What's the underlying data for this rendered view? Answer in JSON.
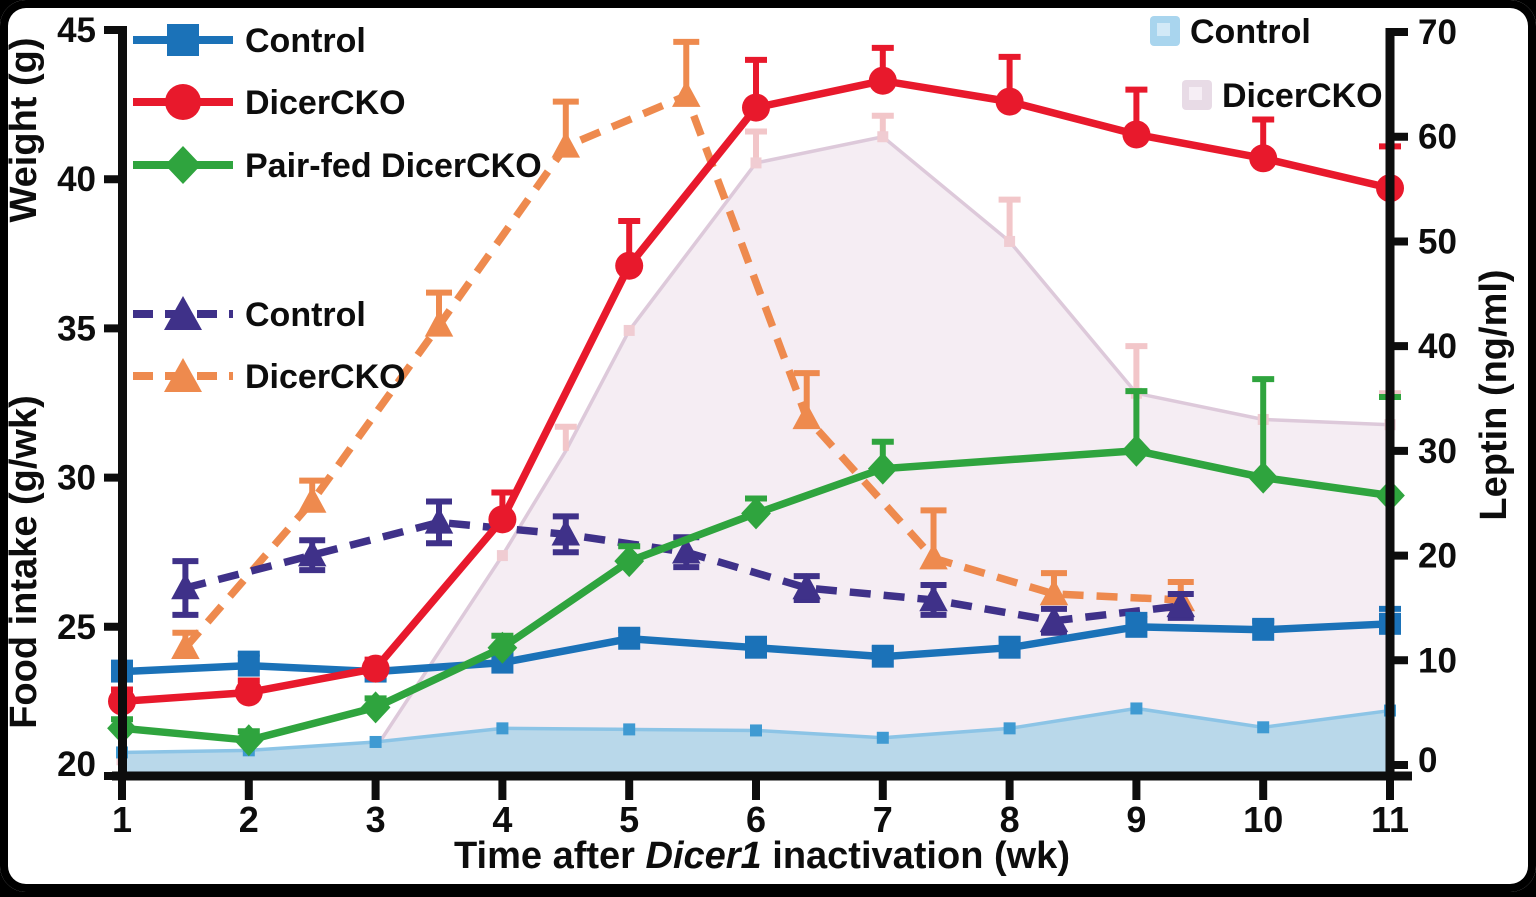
{
  "palette": {
    "control_weight": "#1b72b8",
    "dicercko_weight": "#e8192c",
    "pairfed_weight": "#2fa43e",
    "control_food": "#3f3189",
    "dicercko_food": "#ee8a4e",
    "leptin_control_fill": "#b9d8ea",
    "leptin_control_edge": "#8cc4e6",
    "leptin_control_marker": "#3f9ad2",
    "leptin_dicercko_fill": "#f5edf3",
    "leptin_dicercko_edge": "#ddc9da",
    "leptin_dicercko_err": "#f2c6c9",
    "axis": "#0d0d0d"
  },
  "legends": {
    "weight": [
      {
        "label": "Control",
        "marker": "square",
        "color": "#1b72b8"
      },
      {
        "label": "DicerCKO",
        "marker": "circle",
        "color": "#e8192c"
      },
      {
        "label": "Pair-fed DicerCKO",
        "marker": "diamond",
        "color": "#2fa43e"
      }
    ],
    "food": [
      {
        "label": "Control",
        "marker": "triangle",
        "color": "#3f3189"
      },
      {
        "label": "DicerCKO",
        "marker": "triangle",
        "color": "#ee8a4e"
      }
    ],
    "leptin": [
      {
        "label": "Control",
        "swatch_outer": "#a9d5ee",
        "swatch_inner": "#d2e9f7"
      },
      {
        "label": "DicerCKO",
        "swatch_outer": "#e8dbe6",
        "swatch_inner": "#f6eef5"
      }
    ]
  },
  "chart_data": {
    "type": "line",
    "title": "",
    "x_axis": {
      "title_parts": [
        "Time after ",
        "Dicer1",
        " inactivation (wk)"
      ],
      "ticks": [
        1,
        2,
        3,
        4,
        5,
        6,
        7,
        8,
        9,
        10,
        11
      ],
      "range": [
        1,
        11
      ]
    },
    "left_axis": {
      "labels": [
        "Weight (g)",
        "Food intake (g/wk)"
      ],
      "ticks": [
        20,
        25,
        30,
        35,
        40,
        45
      ],
      "range": [
        20,
        45
      ]
    },
    "right_axis": {
      "label": "Leptin (ng/ml)",
      "ticks": [
        0,
        10,
        20,
        30,
        40,
        50,
        60,
        70
      ],
      "range": [
        0,
        70
      ]
    },
    "series": [
      {
        "name": "DicerCKO leptin",
        "legend": "DicerCKO",
        "type": "area",
        "axis": "right",
        "x": [
          1,
          2,
          3,
          4,
          4.5,
          5,
          6,
          7,
          8,
          9,
          10,
          11
        ],
        "y": [
          0.5,
          0.7,
          1.6,
          20,
          30,
          41.5,
          57.5,
          60,
          50,
          35.5,
          33,
          32.5
        ],
        "err_up": [
          0,
          0,
          0,
          0,
          2.3,
          0,
          3,
          2,
          4,
          4.5,
          0,
          3
        ],
        "fill": "#f5edf3",
        "edge": "#ddc9da",
        "err_color": "#f2c6c9",
        "marker": "square",
        "marker_color": "#f0ccd2",
        "marker_size": 11
      },
      {
        "name": "Control leptin",
        "legend": "Control",
        "type": "area",
        "axis": "right",
        "x": [
          1,
          2,
          3,
          4,
          5,
          6,
          7,
          8,
          9,
          10,
          11
        ],
        "y": [
          1.2,
          1.4,
          2.2,
          3.5,
          3.4,
          3.3,
          2.6,
          3.5,
          5.4,
          3.6,
          5.2
        ],
        "err_up": [
          0,
          0,
          0,
          0,
          0,
          0,
          0,
          0,
          0,
          0,
          0
        ],
        "fill": "#b9d8ea",
        "edge": "#8cc4e6",
        "err_color": "#8cc4e6",
        "marker": "square",
        "marker_color": "#3f9ad2",
        "marker_size": 12
      },
      {
        "name": "DicerCKO food intake",
        "legend": "DicerCKO",
        "type": "line",
        "axis": "left",
        "dash": true,
        "x": [
          1.5,
          2.5,
          3.5,
          4.5,
          5.45,
          6.4,
          7.4,
          8.35,
          9.35
        ],
        "y": [
          24.3,
          29.2,
          35.1,
          41.1,
          42.8,
          32.0,
          27.3,
          26.1,
          25.9
        ],
        "err_up": [
          0.5,
          0.7,
          1.1,
          1.5,
          1.8,
          1.5,
          1.6,
          0.7,
          0.6
        ],
        "err_down": [
          0,
          0,
          0,
          0,
          0,
          0,
          0,
          0,
          0
        ],
        "color": "#ee8a4e",
        "marker": "triangle",
        "marker_size": 15
      },
      {
        "name": "Control food intake",
        "legend": "Control",
        "type": "line",
        "axis": "left",
        "dash": true,
        "x": [
          1.5,
          2.5,
          3.5,
          4.5,
          5.45,
          6.4,
          7.4,
          8.35,
          9.35
        ],
        "y": [
          26.3,
          27.4,
          28.5,
          28.1,
          27.5,
          26.3,
          25.9,
          25.2,
          25.7
        ],
        "err_up": [
          0.9,
          0.5,
          0.7,
          0.6,
          0.5,
          0.4,
          0.5,
          0.4,
          0.4
        ],
        "err_down": [
          0.9,
          0.5,
          0.7,
          0.6,
          0.5,
          0.4,
          0.5,
          0.4,
          0.4
        ],
        "color": "#3f3189",
        "marker": "triangle",
        "marker_size": 15
      },
      {
        "name": "Control weight",
        "legend": "Control",
        "type": "line",
        "axis": "left",
        "dash": false,
        "x": [
          1,
          2,
          3,
          4,
          5,
          6,
          7,
          8,
          9,
          10,
          11
        ],
        "y": [
          23.5,
          23.7,
          23.5,
          23.8,
          24.6,
          24.3,
          24.0,
          24.3,
          25.0,
          24.9,
          25.1
        ],
        "err_up": [
          0.3,
          0.4,
          0.2,
          0.3,
          0.3,
          0.3,
          0.3,
          0.3,
          0.4,
          0.3,
          0.5
        ],
        "err_down": [
          0,
          0,
          0,
          0,
          0,
          0,
          0,
          0,
          0,
          0,
          0
        ],
        "color": "#1b72b8",
        "marker": "square",
        "marker_size": 22
      },
      {
        "name": "Pair-fed DicerCKO weight",
        "legend": "Pair-fed DicerCKO",
        "type": "line",
        "axis": "left",
        "dash": false,
        "x": [
          1,
          2,
          3,
          4,
          5,
          6,
          7,
          9,
          10,
          11
        ],
        "y": [
          21.6,
          21.2,
          22.3,
          24.3,
          27.2,
          28.8,
          30.3,
          30.9,
          30.0,
          29.4
        ],
        "err_up": [
          0.3,
          0.3,
          0.3,
          0.4,
          0.5,
          0.5,
          0.9,
          2.0,
          3.3,
          3.3
        ],
        "err_down": [
          0,
          0,
          0,
          0,
          0,
          0,
          0,
          0,
          0,
          0
        ],
        "color": "#2fa43e",
        "marker": "diamond",
        "marker_size": 16
      },
      {
        "name": "DicerCKO weight",
        "legend": "DicerCKO",
        "type": "line",
        "axis": "left",
        "dash": false,
        "x": [
          1,
          2,
          3,
          4,
          5,
          6,
          7,
          8,
          9,
          10,
          11
        ],
        "y": [
          22.5,
          22.8,
          23.6,
          28.6,
          37.1,
          42.4,
          43.3,
          42.6,
          41.5,
          40.7,
          39.7
        ],
        "err_up": [
          0.4,
          0.4,
          0.3,
          0.9,
          1.5,
          1.6,
          1.1,
          1.5,
          1.5,
          1.3,
          1.4
        ],
        "err_down": [
          0,
          0,
          0,
          0,
          0,
          0,
          0,
          0,
          0,
          0,
          0
        ],
        "color": "#e8192c",
        "marker": "circle",
        "marker_size": 14
      }
    ]
  }
}
